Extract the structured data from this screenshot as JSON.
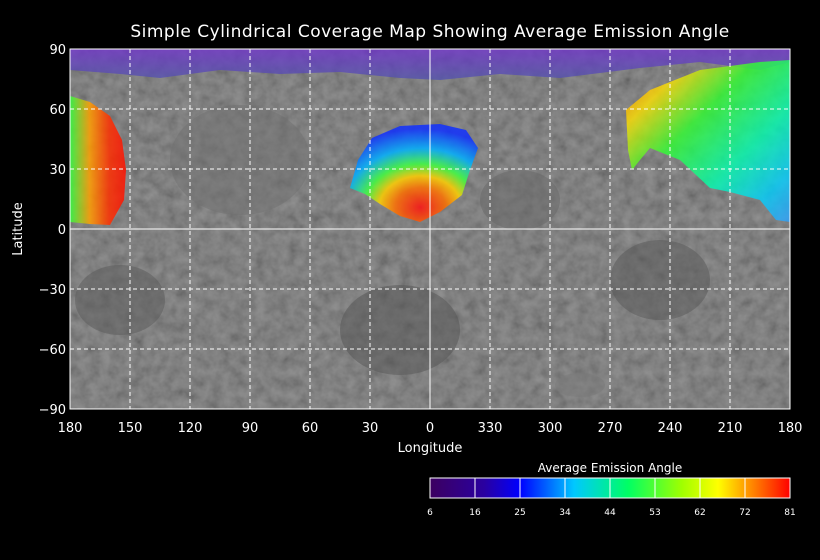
{
  "map": {
    "title": "Simple Cylindrical Coverage Map Showing Average Emission Angle",
    "xlabel": "Longitude",
    "ylabel": "Latitude",
    "x_ticks": [
      "180",
      "150",
      "120",
      "90",
      "60",
      "30",
      "0",
      "330",
      "300",
      "270",
      "240",
      "210",
      "180"
    ],
    "y_ticks": [
      "90",
      "60",
      "30",
      "0",
      "−30",
      "−60",
      "−90"
    ],
    "grid": "dashed white every 30 degrees; solid line at latitude 0 and longitude 0",
    "background": "grey cylindrical basemap of planetary surface",
    "coverage": [
      {
        "region": "polar band",
        "lon_range": [
          180,
          180
        ],
        "lat_range": [
          72,
          90
        ],
        "emission_angle": [
          10,
          25
        ]
      },
      {
        "region": "left edge",
        "lon_range": [
          180,
          145
        ],
        "lat_range": [
          4,
          66
        ],
        "emission_angle": [
          45,
          81
        ]
      },
      {
        "region": "center",
        "lon_range": [
          30,
          355
        ],
        "lat_range": [
          5,
          55
        ],
        "emission_angle": [
          25,
          81
        ]
      },
      {
        "region": "right",
        "lon_range": [
          265,
          180
        ],
        "lat_range": [
          3,
          78
        ],
        "emission_angle": [
          25,
          81
        ]
      }
    ]
  },
  "colorbar": {
    "title": "Average Emission Angle",
    "ticks": [
      "6",
      "16",
      "25",
      "34",
      "44",
      "53",
      "62",
      "72",
      "81"
    ],
    "colors": [
      "#3c0060",
      "#0000ff",
      "#00c8ff",
      "#00ff64",
      "#ffff00",
      "#ff0000"
    ]
  }
}
